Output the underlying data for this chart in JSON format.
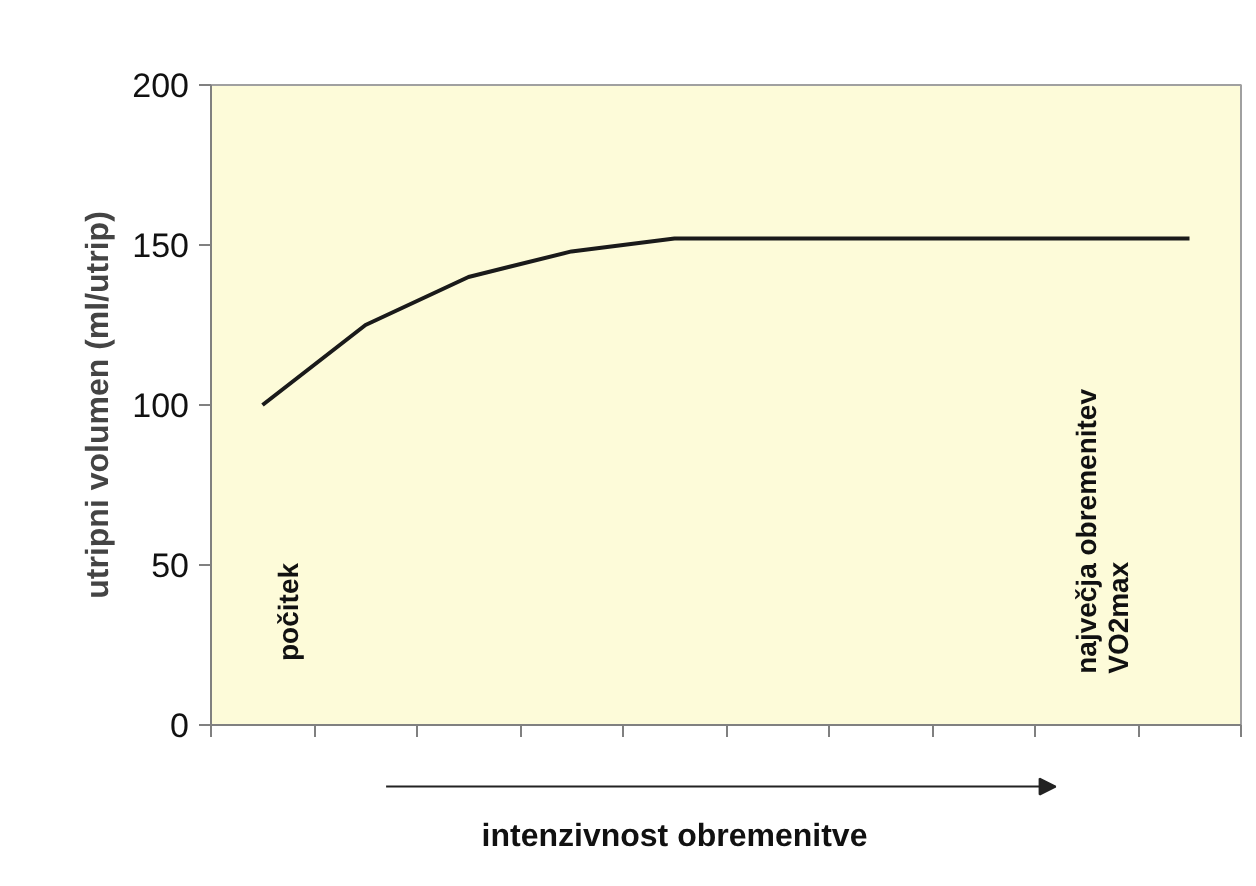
{
  "chart_data": {
    "type": "line",
    "xlabel": "intenzivnost obremenitve",
    "ylabel": "utripni volumen (ml/utrip)",
    "categories": [
      null,
      null,
      null,
      null,
      null,
      null,
      null,
      null,
      null,
      null
    ],
    "series": [
      {
        "color": "#1a1a1a",
        "values": [
          100,
          125,
          140,
          148,
          152,
          152,
          152,
          152,
          152,
          152
        ]
      }
    ],
    "ylim": [
      0,
      200
    ],
    "yticks": [
      0,
      50,
      100,
      150,
      200
    ],
    "annotations": [
      "počitek",
      "največja obremenitev\nVO2max"
    ],
    "tick_labels": "y",
    "marker": "none",
    "line_style": "solid"
  }
}
